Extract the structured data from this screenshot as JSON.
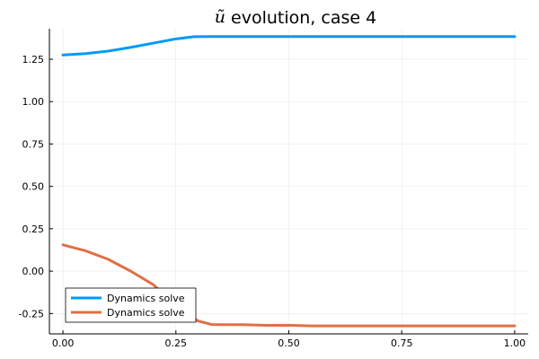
{
  "chart_data": {
    "type": "line",
    "title_math": "ũ",
    "title": "evolution, case 4",
    "xlabel": "",
    "ylabel": "",
    "xlim": [
      -0.03,
      1.03
    ],
    "ylim": [
      -0.37,
      1.43
    ],
    "x_ticks": [
      0.0,
      0.25,
      0.5,
      0.75,
      1.0
    ],
    "x_tick_labels": [
      "0.00",
      "0.25",
      "0.50",
      "0.75",
      "1.00"
    ],
    "y_ticks": [
      -0.25,
      0.0,
      0.25,
      0.5,
      0.75,
      1.0,
      1.25
    ],
    "y_tick_labels": [
      "-0.25",
      "0.00",
      "0.25",
      "0.50",
      "0.75",
      "1.00",
      "1.25"
    ],
    "grid": true,
    "legend_position": "bottom-left",
    "series": [
      {
        "name": "Dynamics solve",
        "color": "#009af9",
        "x": [
          0.0,
          0.05,
          0.1,
          0.15,
          0.2,
          0.25,
          0.29,
          0.32,
          0.4,
          0.5,
          0.6,
          0.7,
          0.8,
          0.9,
          1.0
        ],
        "y": [
          1.275,
          1.283,
          1.298,
          1.32,
          1.345,
          1.37,
          1.383,
          1.384,
          1.384,
          1.384,
          1.384,
          1.384,
          1.384,
          1.384,
          1.384
        ]
      },
      {
        "name": "Dynamics solve",
        "color": "#e26f46",
        "x": [
          0.0,
          0.05,
          0.1,
          0.15,
          0.2,
          0.25,
          0.28,
          0.3,
          0.33,
          0.4,
          0.45,
          0.5,
          0.55,
          0.6,
          0.7,
          0.8,
          0.9,
          1.0
        ],
        "y": [
          0.155,
          0.12,
          0.07,
          0.0,
          -0.08,
          -0.2,
          -0.26,
          -0.295,
          -0.315,
          -0.316,
          -0.32,
          -0.319,
          -0.323,
          -0.323,
          -0.323,
          -0.323,
          -0.323,
          -0.323
        ]
      }
    ]
  }
}
